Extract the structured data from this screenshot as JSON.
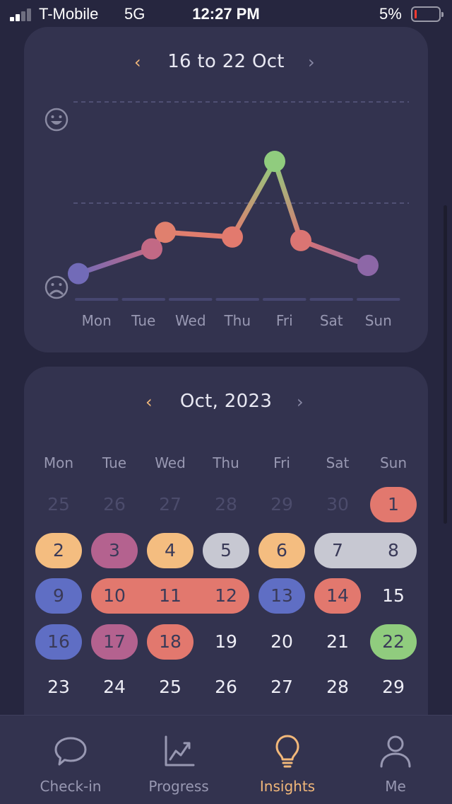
{
  "status_bar": {
    "carrier": "T-Mobile",
    "network": "5G",
    "time": "12:27 PM",
    "battery": "5%"
  },
  "week_card": {
    "title": "16 to 22 Oct",
    "prev_arrow": "‹",
    "next_arrow": "›"
  },
  "chart_data": {
    "type": "line",
    "categories": [
      "Mon",
      "Tue",
      "Wed",
      "Thu",
      "Fri",
      "Sat",
      "Sun"
    ],
    "series": [
      {
        "points": [
          {
            "x": "Mon",
            "y": 0.05
          },
          {
            "x": "Tue",
            "y": 0.26
          },
          {
            "x": "Wed",
            "y": 0.4
          },
          {
            "x": "Thu",
            "y": 0.36
          },
          {
            "x": "Fri",
            "y": 1.0
          },
          {
            "x": "Sat",
            "y": 0.33
          },
          {
            "x": "Sun",
            "y": 0.12
          }
        ]
      }
    ],
    "ylim": [
      0,
      1.0
    ],
    "y_icons": {
      "top": "happy-face-icon",
      "bottom": "sad-face-icon"
    },
    "grid": true
  },
  "month_card": {
    "title": "Oct, 2023",
    "prev_arrow": "‹",
    "next_arrow": "›",
    "weekdays": [
      "Mon",
      "Tue",
      "Wed",
      "Thu",
      "Fri",
      "Sat",
      "Sun"
    ],
    "weeks": [
      [
        {
          "d": "25",
          "muted": true
        },
        {
          "d": "26",
          "muted": true
        },
        {
          "d": "27",
          "muted": true
        },
        {
          "d": "28",
          "muted": true
        },
        {
          "d": "29",
          "muted": true
        },
        {
          "d": "30",
          "muted": true
        },
        {
          "d": "1",
          "mood": "red"
        }
      ],
      [
        {
          "d": "2",
          "mood": "orange"
        },
        {
          "d": "3",
          "mood": "purple"
        },
        {
          "d": "4",
          "mood": "orange"
        },
        {
          "d": "5",
          "mood": "grey"
        },
        {
          "d": "6",
          "mood": "orange"
        },
        {
          "d": "7",
          "mood": "grey"
        },
        {
          "d": "8",
          "mood": "grey"
        }
      ],
      [
        {
          "d": "9",
          "mood": "blue"
        },
        {
          "d": "10",
          "mood": "red"
        },
        {
          "d": "11",
          "mood": "red"
        },
        {
          "d": "12",
          "mood": "red"
        },
        {
          "d": "13",
          "mood": "blue"
        },
        {
          "d": "14",
          "mood": "red"
        },
        {
          "d": "15"
        }
      ],
      [
        {
          "d": "16",
          "mood": "blue"
        },
        {
          "d": "17",
          "mood": "purple"
        },
        {
          "d": "18",
          "mood": "red"
        },
        {
          "d": "19"
        },
        {
          "d": "20"
        },
        {
          "d": "21"
        },
        {
          "d": "22",
          "mood": "green"
        }
      ],
      [
        {
          "d": "23"
        },
        {
          "d": "24"
        },
        {
          "d": "25"
        },
        {
          "d": "26"
        },
        {
          "d": "27"
        },
        {
          "d": "28"
        },
        {
          "d": "29"
        }
      ]
    ]
  },
  "mood_colors": {
    "red": "#e2786e",
    "orange": "#f4bd80",
    "purple": "#b4628f",
    "grey": "#c7c8d2",
    "blue": "#5f6ec4",
    "green": "#90cc7e"
  },
  "tab_bar": {
    "tabs": [
      {
        "label": "Check-in",
        "icon": "chat-bubble-icon",
        "active": false
      },
      {
        "label": "Progress",
        "icon": "chart-icon",
        "active": false
      },
      {
        "label": "Insights",
        "icon": "lightbulb-icon",
        "active": true
      },
      {
        "label": "Me",
        "icon": "person-icon",
        "active": false
      }
    ],
    "active_color": "#f2b87a",
    "inactive_color": "#9898b2"
  }
}
